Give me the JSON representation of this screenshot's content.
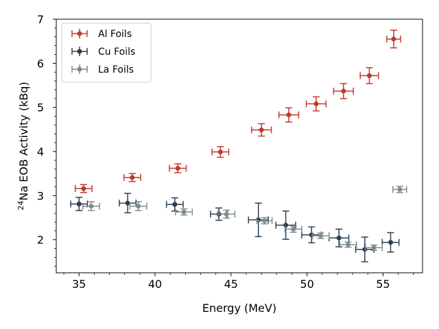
{
  "chart_data": {
    "type": "scatter",
    "title": "",
    "xlabel": "Energy (MeV)",
    "ylabel_prefix": "24",
    "ylabel_main": "Na EOB Activity (kBq)",
    "xlim": [
      33.5,
      57.6
    ],
    "ylim": [
      1.25,
      7.0
    ],
    "xticks": [
      35,
      40,
      45,
      50,
      55
    ],
    "yticks": [
      2,
      3,
      4,
      5,
      6,
      7
    ],
    "xtick_labels": [
      "35",
      "40",
      "45",
      "50",
      "55"
    ],
    "ytick_labels": [
      "2",
      "3",
      "4",
      "5",
      "6",
      "7"
    ],
    "legend_position": "top-left",
    "series": [
      {
        "name": "Al Foils",
        "color": "#c0392b",
        "points": [
          {
            "x": 35.3,
            "y": 3.16,
            "xerr": 0.55,
            "yerr": 0.09
          },
          {
            "x": 38.5,
            "y": 3.41,
            "xerr": 0.55,
            "yerr": 0.09
          },
          {
            "x": 41.5,
            "y": 3.62,
            "xerr": 0.55,
            "yerr": 0.1
          },
          {
            "x": 44.3,
            "y": 3.99,
            "xerr": 0.55,
            "yerr": 0.12
          },
          {
            "x": 47.0,
            "y": 4.49,
            "xerr": 0.65,
            "yerr": 0.14
          },
          {
            "x": 48.8,
            "y": 4.83,
            "xerr": 0.65,
            "yerr": 0.16
          },
          {
            "x": 50.6,
            "y": 5.08,
            "xerr": 0.65,
            "yerr": 0.16
          },
          {
            "x": 52.4,
            "y": 5.37,
            "xerr": 0.65,
            "yerr": 0.17
          },
          {
            "x": 54.1,
            "y": 5.72,
            "xerr": 0.6,
            "yerr": 0.18
          },
          {
            "x": 55.7,
            "y": 6.55,
            "xerr": 0.45,
            "yerr": 0.2
          }
        ]
      },
      {
        "name": "Cu Foils",
        "color": "#2c3e50",
        "points": [
          {
            "x": 35.0,
            "y": 2.81,
            "xerr": 0.55,
            "yerr": 0.15
          },
          {
            "x": 38.2,
            "y": 2.83,
            "xerr": 0.55,
            "yerr": 0.22
          },
          {
            "x": 41.3,
            "y": 2.8,
            "xerr": 0.55,
            "yerr": 0.15
          },
          {
            "x": 44.2,
            "y": 2.58,
            "xerr": 0.55,
            "yerr": 0.14
          },
          {
            "x": 46.8,
            "y": 2.45,
            "xerr": 0.65,
            "yerr": 0.38
          },
          {
            "x": 48.6,
            "y": 2.33,
            "xerr": 0.65,
            "yerr": 0.32
          },
          {
            "x": 50.3,
            "y": 2.11,
            "xerr": 0.65,
            "yerr": 0.18
          },
          {
            "x": 52.1,
            "y": 2.04,
            "xerr": 0.65,
            "yerr": 0.2
          },
          {
            "x": 53.8,
            "y": 1.78,
            "xerr": 0.6,
            "yerr": 0.28
          },
          {
            "x": 55.5,
            "y": 1.94,
            "xerr": 0.55,
            "yerr": 0.22
          }
        ]
      },
      {
        "name": "La Foils",
        "color": "#7f8c8d",
        "points": [
          {
            "x": 35.8,
            "y": 2.76,
            "xerr": 0.55,
            "yerr": 0.1
          },
          {
            "x": 38.9,
            "y": 2.76,
            "xerr": 0.55,
            "yerr": 0.1
          },
          {
            "x": 41.9,
            "y": 2.63,
            "xerr": 0.55,
            "yerr": 0.07
          },
          {
            "x": 44.7,
            "y": 2.58,
            "xerr": 0.55,
            "yerr": 0.09
          },
          {
            "x": 47.2,
            "y": 2.43,
            "xerr": 0.5,
            "yerr": 0.07
          },
          {
            "x": 49.1,
            "y": 2.24,
            "xerr": 0.55,
            "yerr": 0.07
          },
          {
            "x": 50.9,
            "y": 2.09,
            "xerr": 0.55,
            "yerr": 0.06
          },
          {
            "x": 52.7,
            "y": 1.89,
            "xerr": 0.55,
            "yerr": 0.06
          },
          {
            "x": 54.4,
            "y": 1.82,
            "xerr": 0.55,
            "yerr": 0.06
          },
          {
            "x": 56.1,
            "y": 3.14,
            "xerr": 0.45,
            "yerr": 0.07
          }
        ]
      }
    ]
  }
}
